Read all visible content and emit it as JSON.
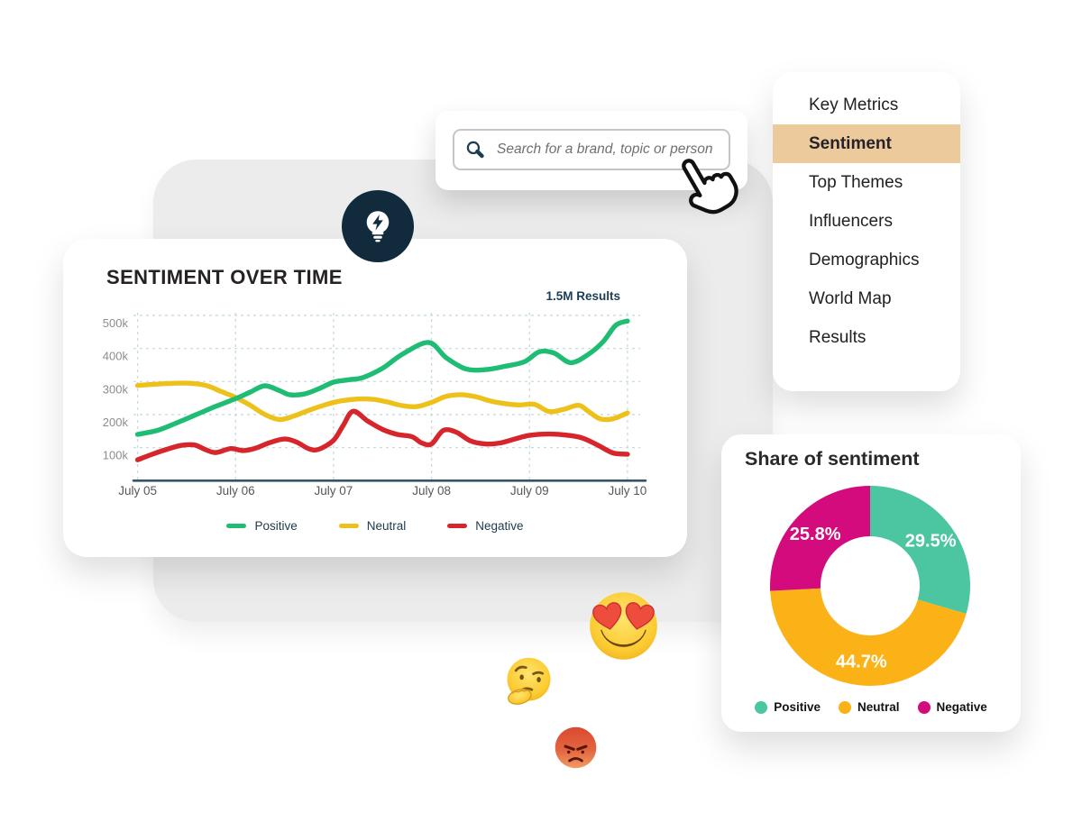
{
  "search": {
    "placeholder": "Search for a brand, topic or person"
  },
  "menu": {
    "items": [
      {
        "label": "Key Metrics",
        "active": false
      },
      {
        "label": "Sentiment",
        "active": true
      },
      {
        "label": "Top Themes",
        "active": false
      },
      {
        "label": "Influencers",
        "active": false
      },
      {
        "label": "Demographics",
        "active": false
      },
      {
        "label": "World Map",
        "active": false
      },
      {
        "label": "Results",
        "active": false
      }
    ],
    "active_bg": "#ecca9c"
  },
  "chart_data": [
    {
      "type": "line",
      "title": "SENTIMENT OVER TIME",
      "annotation": "1.5M Results",
      "x_ticks": [
        "July 05",
        "July 06",
        "July 07",
        "July 08",
        "July 09",
        "July 10"
      ],
      "y_tick_labels": [
        "500k",
        "400k",
        "300k",
        "200k",
        "100k"
      ],
      "y_tick_values": [
        500,
        400,
        300,
        200,
        100
      ],
      "ylim": [
        0,
        545
      ],
      "grid": "dashed",
      "legend_position": "bottom",
      "units": "mentions (thousands)",
      "series": [
        {
          "name": "Positive",
          "color": "#1fbd74",
          "points": [
            [
              5.0,
              140
            ],
            [
              5.2,
              152
            ],
            [
              5.4,
              175
            ],
            [
              5.6,
              200
            ],
            [
              5.8,
              225
            ],
            [
              6.0,
              248
            ],
            [
              6.15,
              268
            ],
            [
              6.3,
              287
            ],
            [
              6.45,
              272
            ],
            [
              6.55,
              260
            ],
            [
              6.7,
              262
            ],
            [
              6.85,
              278
            ],
            [
              7.0,
              298
            ],
            [
              7.15,
              305
            ],
            [
              7.3,
              312
            ],
            [
              7.5,
              340
            ],
            [
              7.7,
              382
            ],
            [
              7.97,
              418
            ],
            [
              8.15,
              372
            ],
            [
              8.35,
              338
            ],
            [
              8.55,
              336
            ],
            [
              8.75,
              346
            ],
            [
              8.95,
              360
            ],
            [
              9.1,
              390
            ],
            [
              9.25,
              386
            ],
            [
              9.42,
              357
            ],
            [
              9.6,
              382
            ],
            [
              9.75,
              420
            ],
            [
              9.88,
              470
            ],
            [
              10.0,
              483
            ]
          ]
        },
        {
          "name": "Neutral",
          "color": "#eec11a",
          "points": [
            [
              5.0,
              288
            ],
            [
              5.25,
              293
            ],
            [
              5.5,
              295
            ],
            [
              5.7,
              288
            ],
            [
              5.85,
              270
            ],
            [
              6.0,
              252
            ],
            [
              6.15,
              228
            ],
            [
              6.3,
              200
            ],
            [
              6.45,
              185
            ],
            [
              6.6,
              196
            ],
            [
              6.75,
              213
            ],
            [
              6.9,
              228
            ],
            [
              7.05,
              240
            ],
            [
              7.25,
              247
            ],
            [
              7.4,
              246
            ],
            [
              7.55,
              238
            ],
            [
              7.7,
              227
            ],
            [
              7.85,
              224
            ],
            [
              8.0,
              237
            ],
            [
              8.15,
              255
            ],
            [
              8.3,
              260
            ],
            [
              8.45,
              254
            ],
            [
              8.6,
              241
            ],
            [
              8.75,
              233
            ],
            [
              8.9,
              229
            ],
            [
              9.05,
              231
            ],
            [
              9.2,
              209
            ],
            [
              9.35,
              216
            ],
            [
              9.5,
              228
            ],
            [
              9.6,
              210
            ],
            [
              9.72,
              187
            ],
            [
              9.85,
              187
            ],
            [
              10.0,
              205
            ]
          ]
        },
        {
          "name": "Negative",
          "color": "#d7252c",
          "points": [
            [
              5.0,
              63
            ],
            [
              5.15,
              80
            ],
            [
              5.3,
              95
            ],
            [
              5.45,
              107
            ],
            [
              5.58,
              108
            ],
            [
              5.7,
              93
            ],
            [
              5.8,
              85
            ],
            [
              5.95,
              97
            ],
            [
              6.08,
              91
            ],
            [
              6.2,
              98
            ],
            [
              6.35,
              115
            ],
            [
              6.5,
              126
            ],
            [
              6.62,
              117
            ],
            [
              6.75,
              96
            ],
            [
              6.85,
              95
            ],
            [
              7.0,
              122
            ],
            [
              7.1,
              168
            ],
            [
              7.2,
              210
            ],
            [
              7.35,
              180
            ],
            [
              7.5,
              155
            ],
            [
              7.65,
              140
            ],
            [
              7.8,
              133
            ],
            [
              7.9,
              114
            ],
            [
              8.0,
              111
            ],
            [
              8.12,
              152
            ],
            [
              8.25,
              147
            ],
            [
              8.4,
              120
            ],
            [
              8.55,
              111
            ],
            [
              8.7,
              114
            ],
            [
              8.85,
              126
            ],
            [
              9.0,
              137
            ],
            [
              9.2,
              141
            ],
            [
              9.4,
              137
            ],
            [
              9.55,
              128
            ],
            [
              9.7,
              107
            ],
            [
              9.85,
              84
            ],
            [
              10.0,
              80
            ]
          ]
        }
      ]
    },
    {
      "type": "donut",
      "title": "Share of sentiment",
      "start": "top",
      "direction": "clockwise",
      "inner_radius_ratio": 0.5,
      "legend_position": "bottom",
      "slices": [
        {
          "label": "Positive",
          "value": 29.5,
          "pct_label": "29.5%",
          "color": "#4bc6a0"
        },
        {
          "label": "Neutral",
          "value": 44.7,
          "pct_label": "44.7%",
          "color": "#fbb216"
        },
        {
          "label": "Negative",
          "value": 25.8,
          "pct_label": "25.8%",
          "color": "#d40b7c"
        }
      ]
    }
  ],
  "colors": {
    "panel_gray": "#ececec",
    "badge_navy": "#112b3c",
    "axis_navy": "#33566b",
    "gridline": "#c7dbe2",
    "menu_highlight": "#ecca9c"
  }
}
